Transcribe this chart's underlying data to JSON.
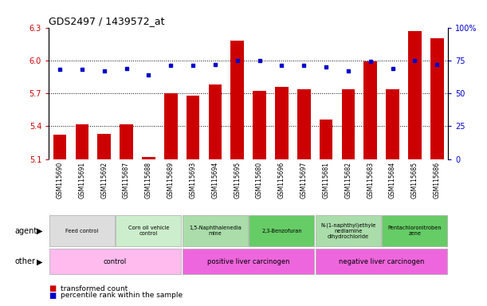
{
  "title": "GDS2497 / 1439572_at",
  "samples": [
    "GSM115690",
    "GSM115691",
    "GSM115692",
    "GSM115687",
    "GSM115688",
    "GSM115689",
    "GSM115693",
    "GSM115694",
    "GSM115695",
    "GSM115680",
    "GSM115696",
    "GSM115697",
    "GSM115681",
    "GSM115682",
    "GSM115683",
    "GSM115684",
    "GSM115685",
    "GSM115686"
  ],
  "bar_values": [
    5.32,
    5.42,
    5.33,
    5.42,
    5.12,
    5.7,
    5.68,
    5.78,
    6.18,
    5.72,
    5.76,
    5.74,
    5.46,
    5.74,
    5.99,
    5.74,
    6.27,
    6.2
  ],
  "dot_values": [
    68,
    68,
    67,
    69,
    64,
    71,
    71,
    72,
    75,
    75,
    71,
    71,
    70,
    67,
    74,
    69,
    75,
    72
  ],
  "ylim_left": [
    5.1,
    6.3
  ],
  "ylim_right": [
    0,
    100
  ],
  "yticks_left": [
    5.1,
    5.4,
    5.7,
    6.0,
    6.3
  ],
  "yticks_right": [
    0,
    25,
    50,
    75,
    100
  ],
  "bar_color": "#cc0000",
  "dot_color": "#0000cc",
  "agent_groups": [
    {
      "label": "Feed control",
      "start": 0,
      "end": 3,
      "color": "#dddddd"
    },
    {
      "label": "Corn oil vehicle\ncontrol",
      "start": 3,
      "end": 6,
      "color": "#cceecc"
    },
    {
      "label": "1,5-Naphthalenedia\nmine",
      "start": 6,
      "end": 9,
      "color": "#aaddaa"
    },
    {
      "label": "2,3-Benzofuran",
      "start": 9,
      "end": 12,
      "color": "#66cc66"
    },
    {
      "label": "N-(1-naphthyl)ethyle\nnediamine\ndihydrochloride",
      "start": 12,
      "end": 15,
      "color": "#aaddaa"
    },
    {
      "label": "Pentachloronitroben\nzene",
      "start": 15,
      "end": 18,
      "color": "#66cc66"
    }
  ],
  "other_groups": [
    {
      "label": "control",
      "start": 0,
      "end": 6,
      "color": "#ffbbee"
    },
    {
      "label": "positive liver carcinogen",
      "start": 6,
      "end": 12,
      "color": "#ee66dd"
    },
    {
      "label": "negative liver carcinogen",
      "start": 12,
      "end": 18,
      "color": "#ee66dd"
    }
  ],
  "legend_items": [
    {
      "label": "transformed count",
      "color": "#cc0000"
    },
    {
      "label": "percentile rank within the sample",
      "color": "#0000cc"
    }
  ]
}
